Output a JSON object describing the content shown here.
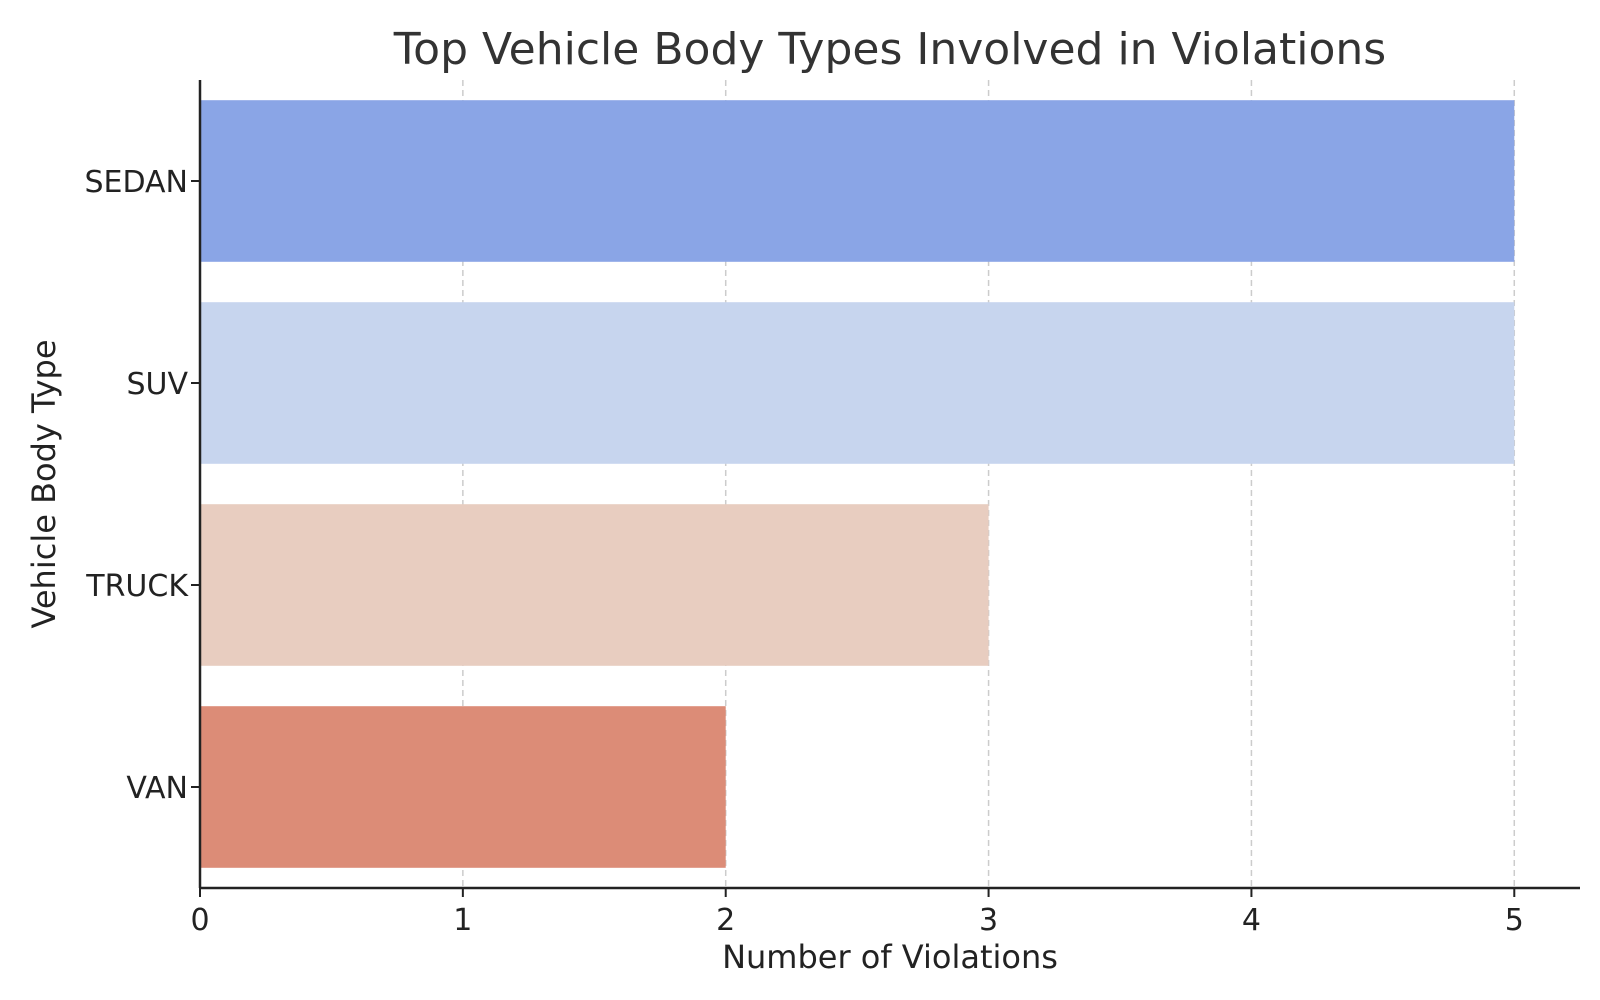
{
  "chart_data": {
    "type": "bar",
    "orientation": "horizontal",
    "title": "Top Vehicle Body Types Involved in Violations",
    "xlabel": "Number of Violations",
    "ylabel": "Vehicle Body Type",
    "categories": [
      "SEDAN",
      "SUV",
      "TRUCK",
      "VAN"
    ],
    "values": [
      5,
      5,
      3,
      2
    ],
    "colors": [
      "#8aa5e6",
      "#c7d5ee",
      "#e8cdc0",
      "#dc8c77"
    ],
    "xlim": [
      0,
      5.25
    ],
    "xticks": [
      "0",
      "1",
      "2",
      "3",
      "4",
      "5"
    ],
    "grid": "vertical dashed",
    "legend": "none"
  }
}
